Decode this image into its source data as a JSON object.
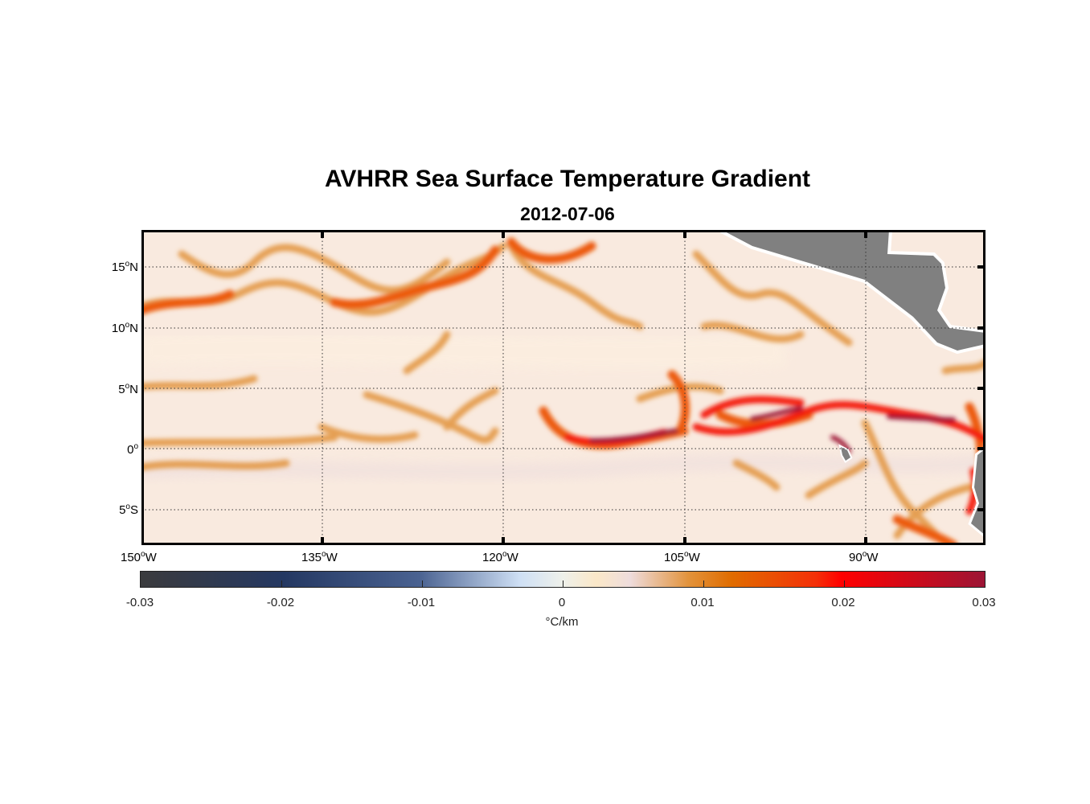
{
  "title": "AVHRR Sea Surface Temperature Gradient",
  "subtitle": "2012-07-06",
  "map": {
    "lon_range": [
      -150,
      -80
    ],
    "lat_range": [
      -8,
      18
    ],
    "lat_labels": [
      {
        "deg": "15",
        "hem": "N",
        "lat": 15
      },
      {
        "deg": "10",
        "hem": "N",
        "lat": 10
      },
      {
        "deg": "5",
        "hem": "N",
        "lat": 5
      },
      {
        "deg": "0",
        "hem": "",
        "lat": 0
      },
      {
        "deg": "5",
        "hem": "S",
        "lat": -5
      }
    ],
    "lon_labels": [
      {
        "deg": "150",
        "hem": "W",
        "lon": -150
      },
      {
        "deg": "135",
        "hem": "W",
        "lon": -135
      },
      {
        "deg": "120",
        "hem": "W",
        "lon": -120
      },
      {
        "deg": "105",
        "hem": "W",
        "lon": -105
      },
      {
        "deg": "90",
        "hem": "W",
        "lon": -90
      }
    ],
    "land_color": "#808080"
  },
  "colorbar": {
    "ticks": [
      "-0.03",
      "-0.02",
      "-0.01",
      "0",
      "0.01",
      "0.02",
      "0.03"
    ],
    "label": "°C/km",
    "range": [
      -0.03,
      0.03
    ]
  }
}
